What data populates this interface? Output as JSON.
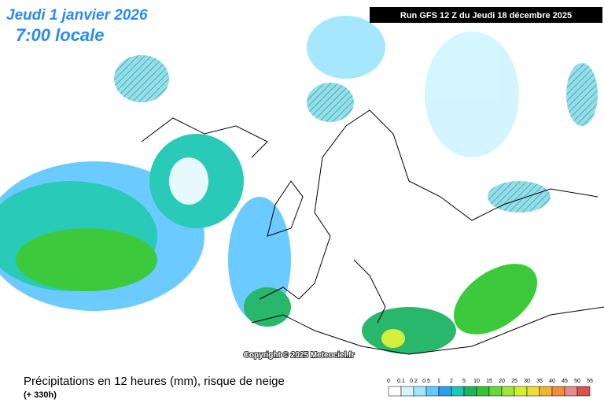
{
  "header": {
    "date": "Jeudi 1 janvier 2026",
    "time": "7:00 locale",
    "run": "Run GFS 12 Z du Jeudi 18 décembre 2025"
  },
  "map": {
    "copyright": "Copyright © 2025 Meteociel.fr"
  },
  "footer": {
    "title": "Précipitations en 12 heures (mm), risque de neige",
    "lead": "(+ 330h)"
  },
  "legend": {
    "ticks": [
      0,
      0.1,
      0.2,
      0.5,
      1,
      2,
      5,
      10,
      15,
      20,
      25,
      30,
      35,
      40,
      45,
      50,
      55
    ],
    "colors": [
      "#ffffff",
      "#d2f5ff",
      "#a0e6ff",
      "#64c8ff",
      "#28a0f0",
      "#1ec8b4",
      "#1eb464",
      "#32c832",
      "#64dc32",
      "#a0e632",
      "#d2f032",
      "#f0dc32",
      "#f0b432",
      "#f08c3c",
      "#e68c8c",
      "#dc5050"
    ]
  }
}
